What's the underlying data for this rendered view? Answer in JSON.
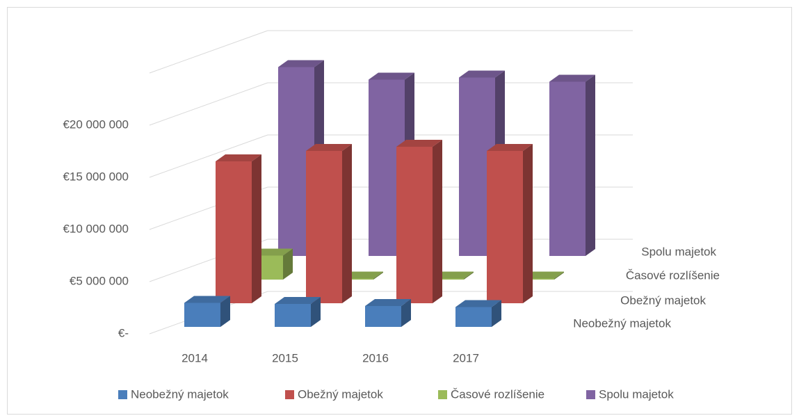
{
  "chart_data": {
    "type": "bar3d",
    "categories": [
      "2014",
      "2015",
      "2016",
      "2017"
    ],
    "series": [
      {
        "name": "Neobežný majetok",
        "color": "#4a7ebb",
        "values": [
          2300000,
          2200000,
          2000000,
          1900000
        ]
      },
      {
        "name": "Obežný majetok",
        "color": "#c0504d",
        "values": [
          13600000,
          14600000,
          15000000,
          14600000
        ]
      },
      {
        "name": "Časové rozlíšenie",
        "color": "#9bbb59",
        "values": [
          2300000,
          100000,
          100000,
          100000
        ]
      },
      {
        "name": "Spolu majetok",
        "color": "#8064a2",
        "values": [
          18100000,
          16900000,
          17100000,
          16700000
        ]
      }
    ],
    "ylim": [
      0,
      25000000
    ],
    "yticks": [
      {
        "value": 0,
        "label": "€-"
      },
      {
        "value": 5000000,
        "label": "€5 000 000"
      },
      {
        "value": 10000000,
        "label": "€10 000 000"
      },
      {
        "value": 15000000,
        "label": "€15 000 000"
      },
      {
        "value": 20000000,
        "label": "€20 000 000"
      }
    ],
    "grid": true,
    "legend": "bottom"
  }
}
